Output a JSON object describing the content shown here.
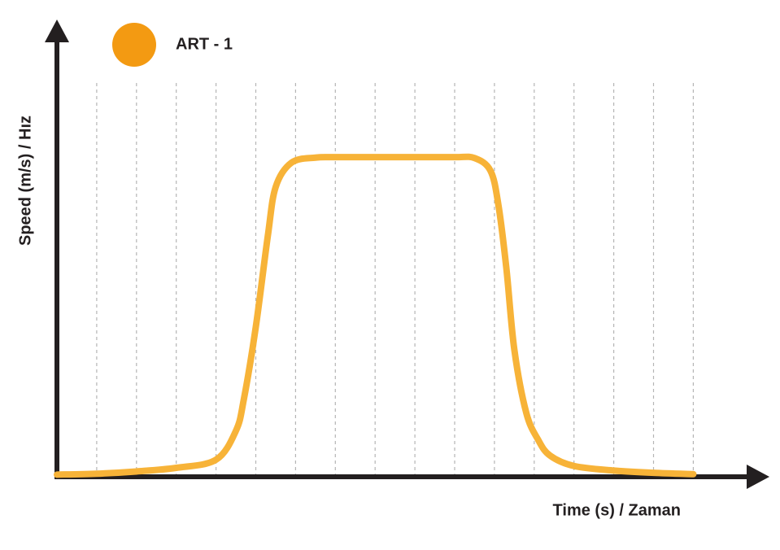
{
  "chart_data": {
    "type": "line",
    "x_label": "Time (s) / Zaman",
    "y_label": "Speed (m/s) / Hız",
    "xlim": [
      0,
      18
    ],
    "ylim": [
      0,
      100
    ],
    "xticks": [
      1,
      2,
      3,
      4,
      5,
      6,
      7,
      8,
      9,
      10,
      11,
      12,
      13,
      14,
      15,
      16
    ],
    "grid": true,
    "series": [
      {
        "name": "ART - 1",
        "color": "#f7b338",
        "legend_color": "#f39a12",
        "x": [
          0,
          1,
          2,
          3,
          4,
          4.5,
          4.7,
          5.0,
          5.3,
          5.5,
          5.9,
          6.5,
          7,
          8,
          9,
          10,
          10.5,
          10.9,
          11.1,
          11.3,
          11.5,
          11.8,
          12.1,
          12.4,
          13,
          14,
          15,
          16
        ],
        "values": [
          0.3,
          0.5,
          1,
          1.8,
          3.6,
          10,
          17,
          33,
          53,
          64,
          69.4,
          70.5,
          70.6,
          70.6,
          70.6,
          70.6,
          70.4,
          67.6,
          60,
          46,
          28,
          14,
          8,
          4.5,
          2.2,
          1.2,
          0.7,
          0.4
        ]
      }
    ]
  }
}
